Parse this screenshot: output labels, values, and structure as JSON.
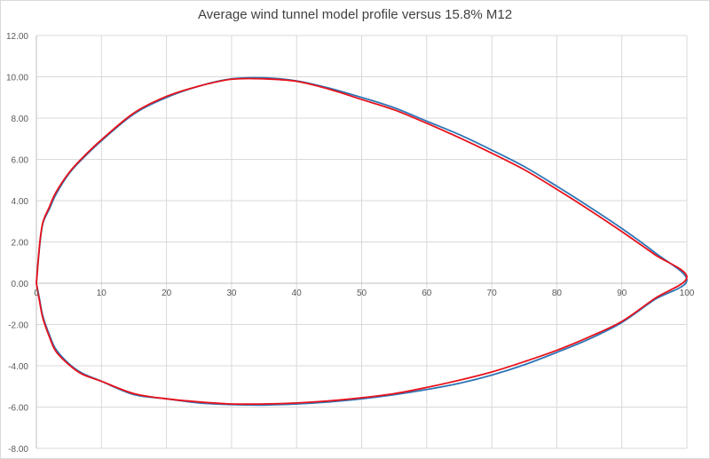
{
  "chart_data": {
    "type": "scatter",
    "title": "Average wind tunnel model profile versus 15.8% M12",
    "xlabel": "",
    "ylabel": "",
    "xlim": [
      0,
      100
    ],
    "ylim": [
      -8,
      12
    ],
    "grid": true,
    "x_ticks": [
      "0",
      "10",
      "20",
      "30",
      "40",
      "50",
      "60",
      "70",
      "80",
      "90",
      "100"
    ],
    "y_ticks": [
      "-8.00",
      "-6.00",
      "-4.00",
      "-2.00",
      "0.00",
      "2.00",
      "4.00",
      "6.00",
      "8.00",
      "10.00",
      "12.00"
    ],
    "series": [
      {
        "color": "#2E75B6",
        "x": [
          0,
          0.5,
          1,
          2,
          3,
          5,
          7,
          10,
          15,
          20,
          25,
          30,
          35,
          40,
          45,
          50,
          55,
          60,
          65,
          70,
          75,
          80,
          85,
          90,
          95,
          100,
          95,
          90,
          85,
          80,
          75,
          70,
          65,
          60,
          55,
          50,
          45,
          40,
          35,
          30,
          25,
          20,
          15,
          10,
          7,
          5,
          3,
          2,
          1,
          0.5,
          0
        ],
        "y": [
          0,
          1.8,
          2.9,
          3.6,
          4.3,
          5.3,
          6.0,
          6.9,
          8.2,
          9.0,
          9.55,
          9.9,
          9.95,
          9.8,
          9.45,
          9.0,
          8.5,
          7.85,
          7.2,
          6.45,
          5.65,
          4.7,
          3.7,
          2.65,
          1.5,
          0.15,
          -0.8,
          -1.9,
          -2.7,
          -3.35,
          -3.95,
          -4.45,
          -4.85,
          -5.15,
          -5.4,
          -5.6,
          -5.75,
          -5.85,
          -5.9,
          -5.88,
          -5.8,
          -5.6,
          -5.4,
          -4.75,
          -4.35,
          -3.9,
          -3.2,
          -2.5,
          -1.6,
          -0.8,
          0
        ]
      },
      {
        "color": "#E8121B",
        "x": [
          0,
          0.5,
          1,
          2,
          3,
          5,
          7,
          10,
          15,
          20,
          25,
          30,
          35,
          40,
          45,
          50,
          55,
          60,
          65,
          70,
          75,
          80,
          85,
          90,
          95,
          100,
          95,
          90,
          85,
          80,
          75,
          70,
          65,
          60,
          55,
          50,
          45,
          40,
          35,
          30,
          25,
          20,
          15,
          10,
          7,
          5,
          3,
          2,
          1,
          0.5,
          0
        ],
        "y": [
          0,
          1.9,
          2.95,
          3.7,
          4.4,
          5.35,
          6.05,
          6.95,
          8.25,
          9.05,
          9.55,
          9.88,
          9.9,
          9.78,
          9.4,
          8.9,
          8.4,
          7.75,
          7.05,
          6.3,
          5.5,
          4.55,
          3.55,
          2.5,
          1.4,
          0.3,
          -0.75,
          -1.85,
          -2.6,
          -3.25,
          -3.8,
          -4.3,
          -4.7,
          -5.05,
          -5.35,
          -5.55,
          -5.7,
          -5.8,
          -5.85,
          -5.85,
          -5.75,
          -5.6,
          -5.35,
          -4.75,
          -4.4,
          -3.95,
          -3.3,
          -2.6,
          -1.7,
          -0.9,
          0
        ]
      }
    ]
  }
}
